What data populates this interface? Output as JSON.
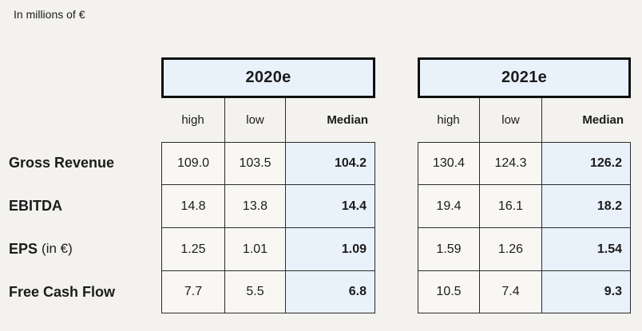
{
  "page": {
    "unit_label": "In millions of €"
  },
  "colors": {
    "highlight_blue": "#e9f1fa",
    "box_border": "#0f0f0f",
    "grid_line": "#2b2b2b",
    "background": "#f3f2ef",
    "text": "#1b1b1b"
  },
  "table": {
    "column_headers": [
      "high",
      "low",
      "Median"
    ],
    "row_labels": [
      {
        "name": "Gross Revenue",
        "suffix": ""
      },
      {
        "name": "EBITDA",
        "suffix": ""
      },
      {
        "name": "EPS",
        "suffix": "(in €)"
      },
      {
        "name": "Free Cash Flow",
        "suffix": ""
      }
    ],
    "groups": [
      {
        "year": "2020e",
        "rows": [
          [
            "109.0",
            "103.5",
            "104.2"
          ],
          [
            "14.8",
            "13.8",
            "14.4"
          ],
          [
            "1.25",
            "1.01",
            "1.09"
          ],
          [
            "7.7",
            "5.5",
            "6.8"
          ]
        ]
      },
      {
        "year": "2021e",
        "rows": [
          [
            "130.4",
            "124.3",
            "126.2"
          ],
          [
            "19.4",
            "16.1",
            "18.2"
          ],
          [
            "1.59",
            "1.26",
            "1.54"
          ],
          [
            "10.5",
            "7.4",
            "9.3"
          ]
        ]
      }
    ]
  },
  "chart_data": {
    "type": "table",
    "title": "In millions of €",
    "column_groups": [
      "2020e",
      "2021e"
    ],
    "columns": [
      "high",
      "low",
      "Median"
    ],
    "row_labels": [
      "Gross Revenue",
      "EBITDA",
      "EPS (in €)",
      "Free Cash Flow"
    ],
    "rows": [
      {
        "label": "Gross Revenue",
        "y2020e": {
          "high": 109.0,
          "low": 103.5,
          "median": 104.2
        },
        "y2021e": {
          "high": 130.4,
          "low": 124.3,
          "median": 126.2
        }
      },
      {
        "label": "EBITDA",
        "y2020e": {
          "high": 14.8,
          "low": 13.8,
          "median": 14.4
        },
        "y2021e": {
          "high": 19.4,
          "low": 16.1,
          "median": 18.2
        }
      },
      {
        "label": "EPS (in €)",
        "y2020e": {
          "high": 1.25,
          "low": 1.01,
          "median": 1.09
        },
        "y2021e": {
          "high": 1.59,
          "low": 1.26,
          "median": 1.54
        }
      },
      {
        "label": "Free Cash Flow",
        "y2020e": {
          "high": 7.7,
          "low": 5.5,
          "median": 6.8
        },
        "y2021e": {
          "high": 10.5,
          "low": 7.4,
          "median": 9.3
        }
      }
    ]
  }
}
